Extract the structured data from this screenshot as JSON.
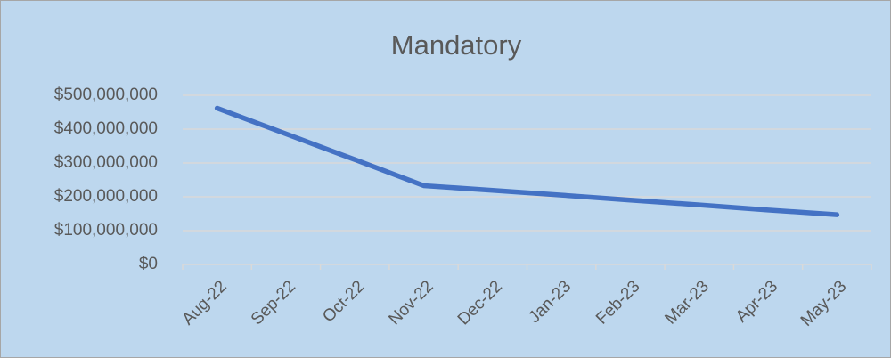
{
  "chart_data": {
    "type": "line",
    "title": "Mandatory",
    "categories": [
      "Aug-22",
      "Sep-22",
      "Oct-22",
      "Nov-22",
      "Dec-22",
      "Jan-23",
      "Feb-23",
      "Mar-23",
      "Apr-23",
      "May-23"
    ],
    "series": [
      {
        "name": "Mandatory",
        "color": "#4472c4",
        "values": [
          462000000,
          386000000,
          310000000,
          233000000,
          219000000,
          205000000,
          190000000,
          176000000,
          161000000,
          147000000
        ]
      }
    ],
    "ylim": [
      0,
      500000000
    ],
    "yticks": [
      {
        "value": 0,
        "label": "$0"
      },
      {
        "value": 100000000,
        "label": "$100,000,000"
      },
      {
        "value": 200000000,
        "label": "$200,000,000"
      },
      {
        "value": 300000000,
        "label": "$300,000,000"
      },
      {
        "value": 400000000,
        "label": "$400,000,000"
      },
      {
        "value": 500000000,
        "label": "$500,000,000"
      }
    ],
    "grid": true
  }
}
